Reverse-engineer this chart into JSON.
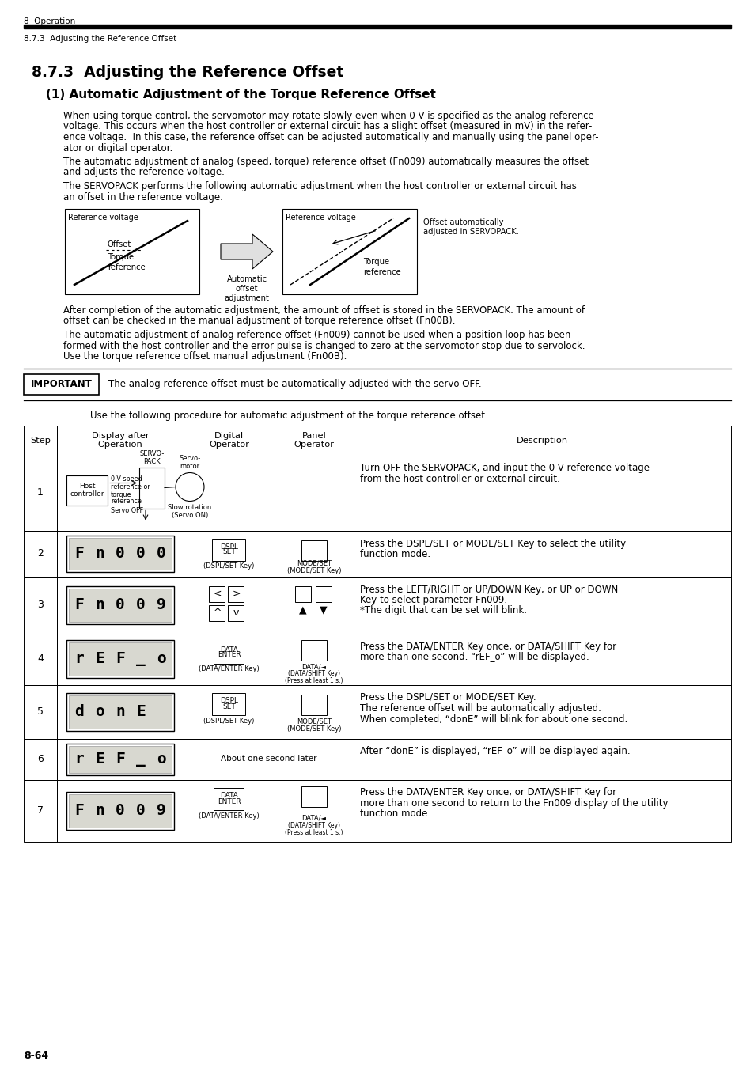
{
  "page_header_left": "8  Operation",
  "page_subheader": "8.7.3  Adjusting the Reference Offset",
  "section_title": "8.7.3  Adjusting the Reference Offset",
  "subsection_title": "(1) Automatic Adjustment of the Torque Reference Offset",
  "para1_lines": [
    "When using torque control, the servomotor may rotate slowly even when 0 V is specified as the analog reference",
    "voltage. This occurs when the host controller or external circuit has a slight offset (measured in mV) in the refer-",
    "ence voltage.  In this case, the reference offset can be adjusted automatically and manually using the panel oper-",
    "ator or digital operator."
  ],
  "para2_lines": [
    "The automatic adjustment of analog (speed, torque) reference offset (Fn009) automatically measures the offset",
    "and adjusts the reference voltage."
  ],
  "para3_lines": [
    "The SERVOPACK performs the following automatic adjustment when the host controller or external circuit has",
    "an offset in the reference voltage."
  ],
  "para4_lines": [
    "After completion of the automatic adjustment, the amount of offset is stored in the SERVOPACK. The amount of",
    "offset can be checked in the manual adjustment of torque reference offset (Fn00B)."
  ],
  "para5_lines": [
    "The automatic adjustment of analog reference offset (Fn009) cannot be used when a position loop has been",
    "formed with the host controller and the error pulse is changed to zero at the servomotor stop due to servolock.",
    "Use the torque reference offset manual adjustment (Fn00B)."
  ],
  "important_label": "IMPORTANT",
  "important_text": "The analog reference offset must be automatically adjusted with the servo OFF.",
  "procedure_intro": "Use the following procedure for automatic adjustment of the torque reference offset.",
  "table_col_headers": [
    "Step",
    "Display after\nOperation",
    "Digital\nOperator",
    "Panel\nOperator",
    "Description"
  ],
  "row_descriptions": [
    "Turn OFF the SERVOPACK, and input the 0-V reference voltage\nfrom the host controller or external circuit.",
    "Press the DSPL/SET or MODE/SET Key to select the utility\nfunction mode.",
    "Press the LEFT/RIGHT or UP/DOWN Key, or UP or DOWN\nKey to select parameter Fn009.\n*The digit that can be set will blink.",
    "Press the DATA/ENTER Key once, or DATA/SHIFT Key for\nmore than one second. “rEF_o” will be displayed.",
    "Press the DSPL/SET or MODE/SET Key.\nThe reference offset will be automatically adjusted.\nWhen completed, “donE” will blink for about one second.",
    "After “donE” is displayed, “rEF_o” will be displayed again.",
    "Press the DATA/ENTER Key once, or DATA/SHIFT Key for\nmore than one second to return to the Fn009 display of the utility\nfunction mode."
  ],
  "display_texts": [
    "",
    "Fn000",
    "Fn009",
    "rEF_o",
    "donE",
    "rEF_o",
    "Fn009"
  ],
  "page_number": "8-64",
  "body_font": 8.5,
  "small_font": 7.0
}
